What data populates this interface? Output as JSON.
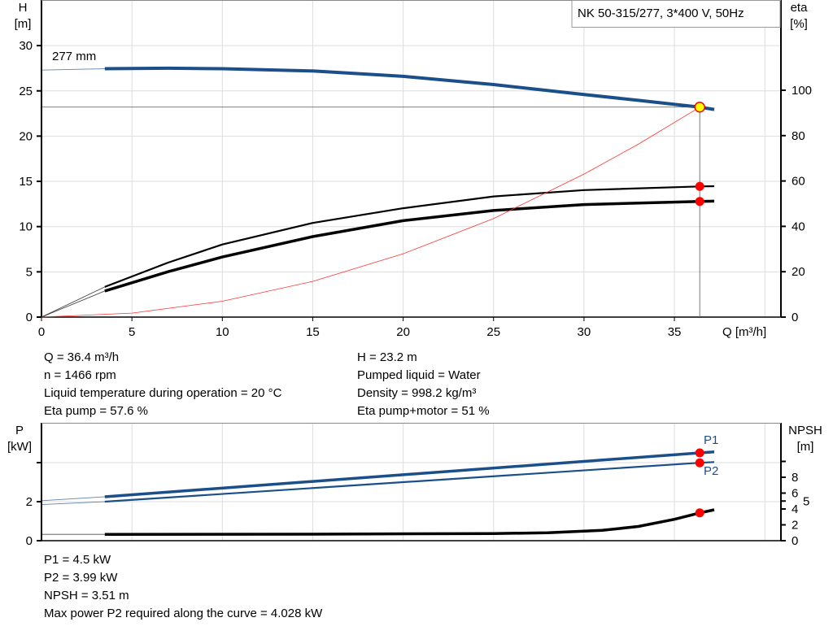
{
  "title": "NK 50-315/277, 3*400 V, 50Hz",
  "info_top_left": [
    "Q = 36.4 m³/h",
    "n = 1466 rpm",
    "Liquid temperature during operation = 20 °C",
    "Eta pump = 57.6 %"
  ],
  "info_top_right": [
    "H = 23.2 m",
    "Pumped liquid = Water",
    "Density = 998.2 kg/m³",
    "Eta pump+motor = 51 %"
  ],
  "info_bottom": [
    "P1 = 4.5 kW",
    "P2 = 3.99 kW",
    "NPSH = 3.51 m",
    "Max power P2 required along the curve = 4.028 kW"
  ],
  "colors": {
    "head": "#1a4f8a",
    "efficiency": "#000000",
    "system": "#ff3333",
    "duty_point_fill": "#ffff00",
    "marker": "#ff0000"
  },
  "chart_data": [
    {
      "type": "line",
      "xlabel": "Q [m³/h]",
      "ylabel": "H\n[m]",
      "y2label": "eta\n[%]",
      "xlim": [
        0,
        40
      ],
      "ylim": [
        0,
        35
      ],
      "y2lim": [
        0,
        125
      ],
      "xticks": [
        0,
        5,
        10,
        15,
        20,
        25,
        30,
        35
      ],
      "yticks": [
        0,
        5,
        10,
        15,
        20,
        25,
        30
      ],
      "y2ticks": [
        0,
        20,
        40,
        60,
        80,
        100
      ],
      "grid": true,
      "duty_point": {
        "Q": 36.4,
        "H": 23.2
      },
      "series": [
        {
          "label": "277 mm",
          "axis": "H",
          "style": "head",
          "x": [
            0,
            3.5,
            7,
            10,
            15,
            20,
            25,
            30,
            33,
            36.4,
            37.2
          ],
          "y": [
            27.3,
            27.45,
            27.5,
            27.45,
            27.2,
            26.6,
            25.7,
            24.6,
            23.95,
            23.2,
            22.95
          ]
        },
        {
          "axis": "eta",
          "style": "eta-pump",
          "x": [
            0,
            3.5,
            7,
            10,
            15,
            20,
            25,
            30,
            36.4,
            37.2
          ],
          "y": [
            0,
            13.3,
            24,
            32,
            41.5,
            48,
            53.2,
            56,
            57.6,
            57.7
          ],
          "markers": [
            {
              "Q": 36.4,
              "eta": 57.6
            }
          ]
        },
        {
          "axis": "eta",
          "style": "eta-total",
          "x": [
            0,
            3.5,
            7,
            10,
            15,
            20,
            25,
            30,
            36.4,
            37.2
          ],
          "y": [
            0,
            11.5,
            20,
            26.5,
            35.5,
            42.5,
            47,
            49.6,
            51,
            51.1
          ],
          "markers": [
            {
              "Q": 36.4,
              "eta": 51
            }
          ]
        },
        {
          "axis": "H",
          "style": "system",
          "x": [
            0,
            5,
            10,
            15,
            20,
            25,
            30,
            33,
            36.4
          ],
          "y": [
            0,
            0.44,
            1.75,
            3.94,
            7.0,
            10.9,
            15.8,
            19.1,
            23.2
          ]
        }
      ]
    },
    {
      "type": "line",
      "xlim": [
        0,
        40
      ],
      "ylim": [
        0,
        6
      ],
      "y2lim": [
        0,
        14.9
      ],
      "ylabel": "P\n[kW]",
      "y2label": "NPSH\n[m]",
      "yticks": [
        0,
        2,
        4
      ],
      "yticklabels": [
        "0",
        "2",
        ""
      ],
      "y2ticks": [
        0,
        2,
        4,
        5,
        6,
        8,
        10
      ],
      "y2ticklabels": [
        "0",
        "2",
        "4",
        "5",
        "6",
        "8",
        ""
      ],
      "grid": true,
      "series": [
        {
          "label": "P1",
          "axis": "P",
          "style": "p1",
          "x": [
            0,
            3.5,
            36.4,
            37.2
          ],
          "y": [
            2.05,
            2.25,
            4.5,
            4.55
          ],
          "markers": [
            {
              "Q": 36.4,
              "v": 4.5
            }
          ]
        },
        {
          "label": "P2",
          "axis": "P",
          "style": "p2",
          "x": [
            0,
            3.5,
            36.4,
            37.2
          ],
          "y": [
            1.85,
            2.0,
            3.99,
            4.028
          ],
          "markers": [
            {
              "Q": 36.4,
              "v": 3.99
            }
          ]
        },
        {
          "axis": "NPSH",
          "style": "npsh",
          "x": [
            0,
            3.5,
            15,
            25,
            28,
            31,
            33,
            35,
            36.4,
            37.2
          ],
          "y": [
            0.8,
            0.8,
            0.82,
            0.9,
            1.0,
            1.3,
            1.8,
            2.7,
            3.51,
            3.9
          ],
          "markers": [
            {
              "Q": 36.4,
              "v": 3.51
            }
          ]
        }
      ]
    }
  ]
}
